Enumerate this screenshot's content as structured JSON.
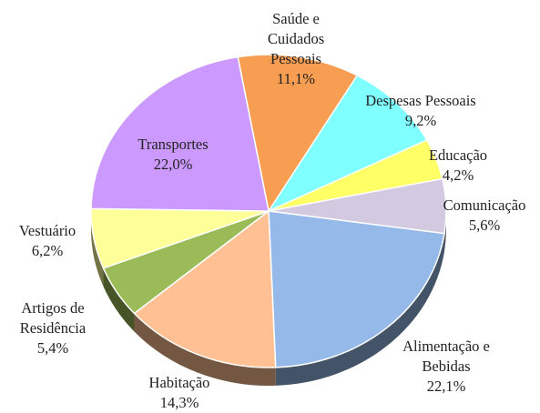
{
  "chart_data": {
    "type": "pie",
    "categories": [
      "Saúde e Cuidados Pessoais",
      "Despesas Pessoais",
      "Educação",
      "Comunicação",
      "Alimentação e Bebidas",
      "Habitação",
      "Artigos de Residência",
      "Vestuário",
      "Transportes"
    ],
    "values": [
      11.1,
      9.2,
      4.2,
      5.6,
      22.1,
      14.3,
      5.4,
      6.2,
      22.0
    ],
    "value_labels": [
      "11,1%",
      "9,2%",
      "4,2%",
      "5,6%",
      "22,1%",
      "14,3%",
      "5,4%",
      "6,2%",
      "22,0%"
    ],
    "colors": [
      "#f79e52",
      "#7fffff",
      "#ffff66",
      "#d3c9e0",
      "#95b9e8",
      "#ffc193",
      "#9bbb59",
      "#ffff99",
      "#cc99ff"
    ]
  }
}
